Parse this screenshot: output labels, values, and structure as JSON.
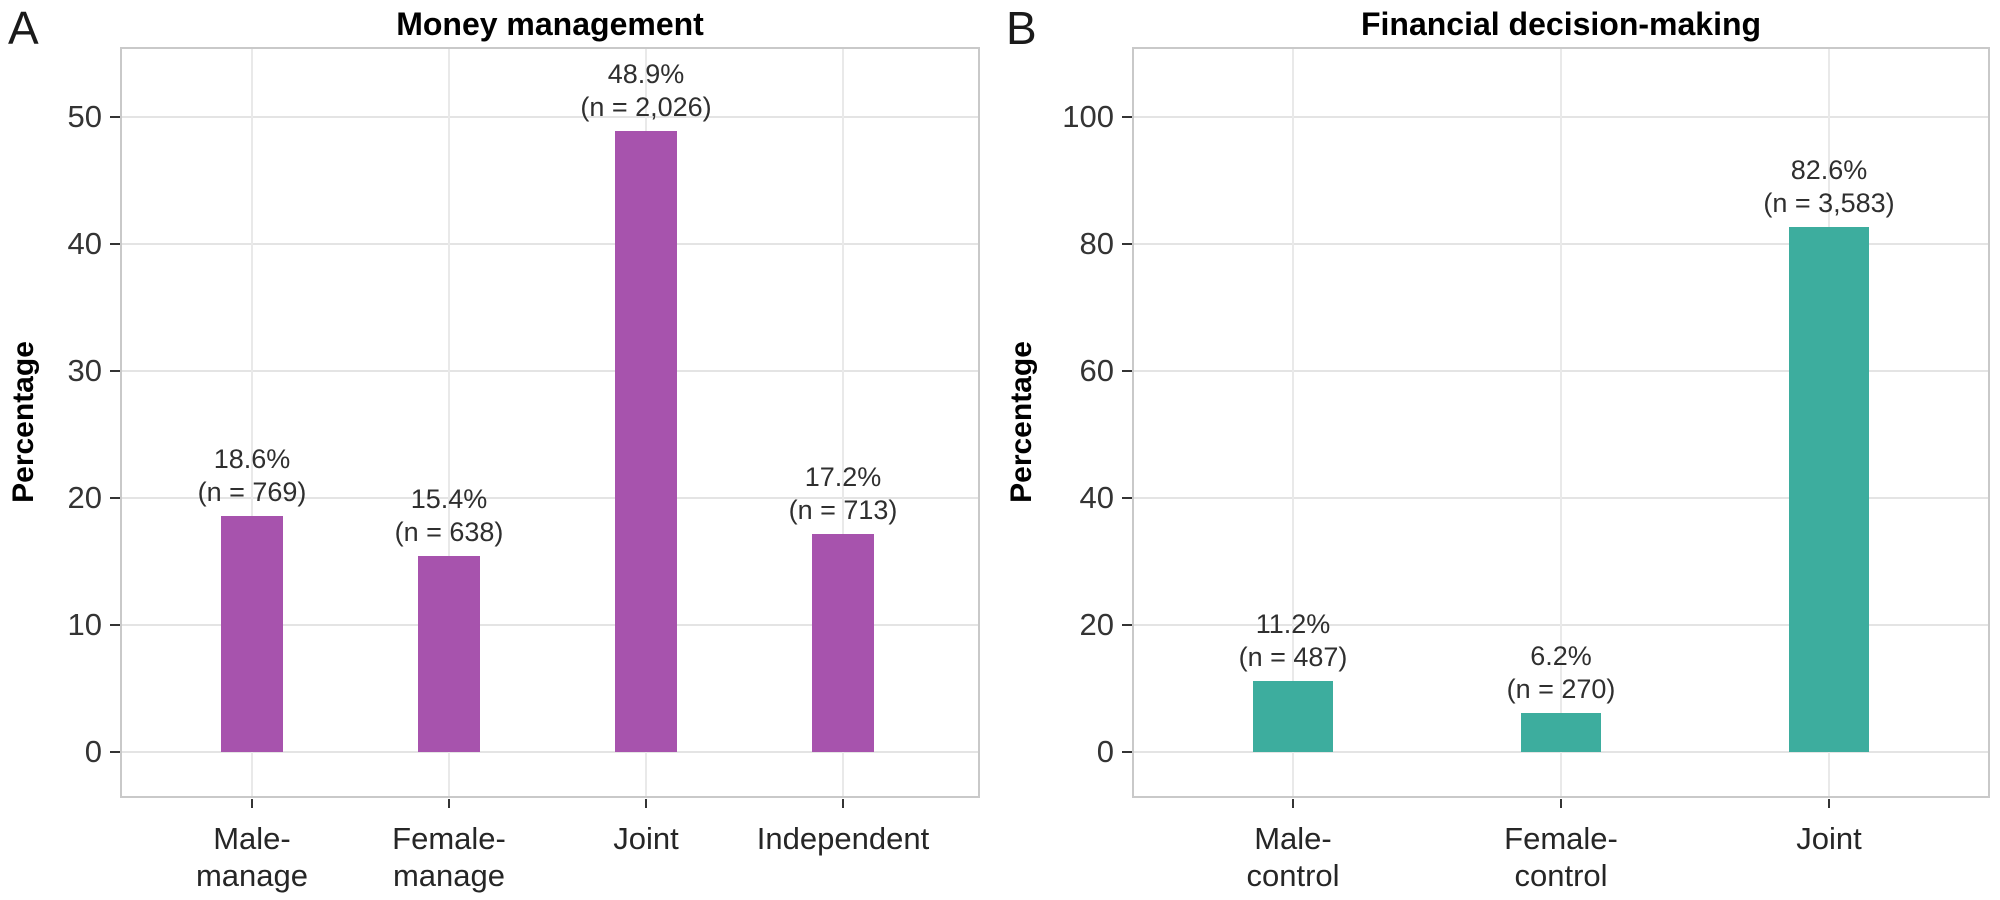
{
  "figure": {
    "background": "#ffffff",
    "panel_letters": [
      "A",
      "B"
    ]
  },
  "chart_data": [
    {
      "type": "bar",
      "panel_letter": "A",
      "title": "Money management",
      "xlabel": "",
      "ylabel": "Percentage",
      "categories": [
        [
          "Male-",
          "manage"
        ],
        [
          "Female-",
          "manage"
        ],
        [
          "Joint"
        ],
        [
          "Independent"
        ]
      ],
      "values": [
        18.6,
        15.4,
        48.9,
        17.2
      ],
      "counts": [
        769,
        638,
        2026,
        713
      ],
      "bar_labels": [
        [
          "18.6%",
          "(n = 769)"
        ],
        [
          "15.4%",
          "(n = 638)"
        ],
        [
          "48.9%",
          "(n = 2,026)"
        ],
        [
          "17.2%",
          "(n = 713)"
        ]
      ],
      "bar_color": "#a753ad",
      "ylim": [
        0,
        55
      ],
      "yticks": [
        0,
        10,
        20,
        30,
        40,
        50
      ],
      "grid": "major-horizontal-and-category-vertical",
      "legend": "none"
    },
    {
      "type": "bar",
      "panel_letter": "B",
      "title": "Financial decision-making",
      "xlabel": "",
      "ylabel": "Percentage",
      "categories": [
        [
          "Male-",
          "control"
        ],
        [
          "Female-",
          "control"
        ],
        [
          "Joint"
        ]
      ],
      "values": [
        11.2,
        6.2,
        82.6
      ],
      "counts": [
        487,
        270,
        3583
      ],
      "bar_labels": [
        [
          "11.2%",
          "(n = 487)"
        ],
        [
          "6.2%",
          "(n = 270)"
        ],
        [
          "82.6%",
          "(n = 3,583)"
        ]
      ],
      "bar_color": "#3dad9e",
      "ylim": [
        0,
        110
      ],
      "yticks": [
        0,
        20,
        40,
        60,
        80,
        100
      ],
      "grid": "major-horizontal-and-category-vertical",
      "legend": "none"
    }
  ]
}
